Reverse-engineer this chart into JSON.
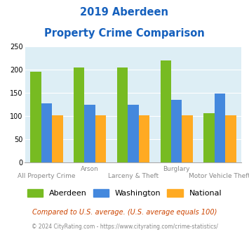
{
  "title_line1": "2019 Aberdeen",
  "title_line2": "Property Crime Comparison",
  "title_color": "#1560bd",
  "categories": [
    "All Property Crime",
    "Arson",
    "Larceny & Theft",
    "Burglary",
    "Motor Vehicle Theft"
  ],
  "x_labels_top": [
    "",
    "Arson",
    "",
    "Burglary",
    ""
  ],
  "x_labels_bottom": [
    "All Property Crime",
    "",
    "Larceny & Theft",
    "",
    "Motor Vehicle Theft"
  ],
  "aberdeen": [
    195,
    204,
    204,
    219,
    106
  ],
  "washington": [
    128,
    125,
    125,
    135,
    148
  ],
  "national": [
    101,
    101,
    101,
    101,
    101
  ],
  "aberdeen_color": "#77bb22",
  "washington_color": "#4488dd",
  "national_color": "#ffaa22",
  "ylim": [
    0,
    250
  ],
  "yticks": [
    0,
    50,
    100,
    150,
    200,
    250
  ],
  "bar_width": 0.25,
  "chart_bg": "#ddeef5",
  "legend_labels": [
    "Aberdeen",
    "Washington",
    "National"
  ],
  "footnote1": "Compared to U.S. average. (U.S. average equals 100)",
  "footnote1_color": "#cc4400",
  "footnote2": "© 2024 CityRating.com - https://www.cityrating.com/crime-statistics/",
  "footnote2_color": "#888888"
}
